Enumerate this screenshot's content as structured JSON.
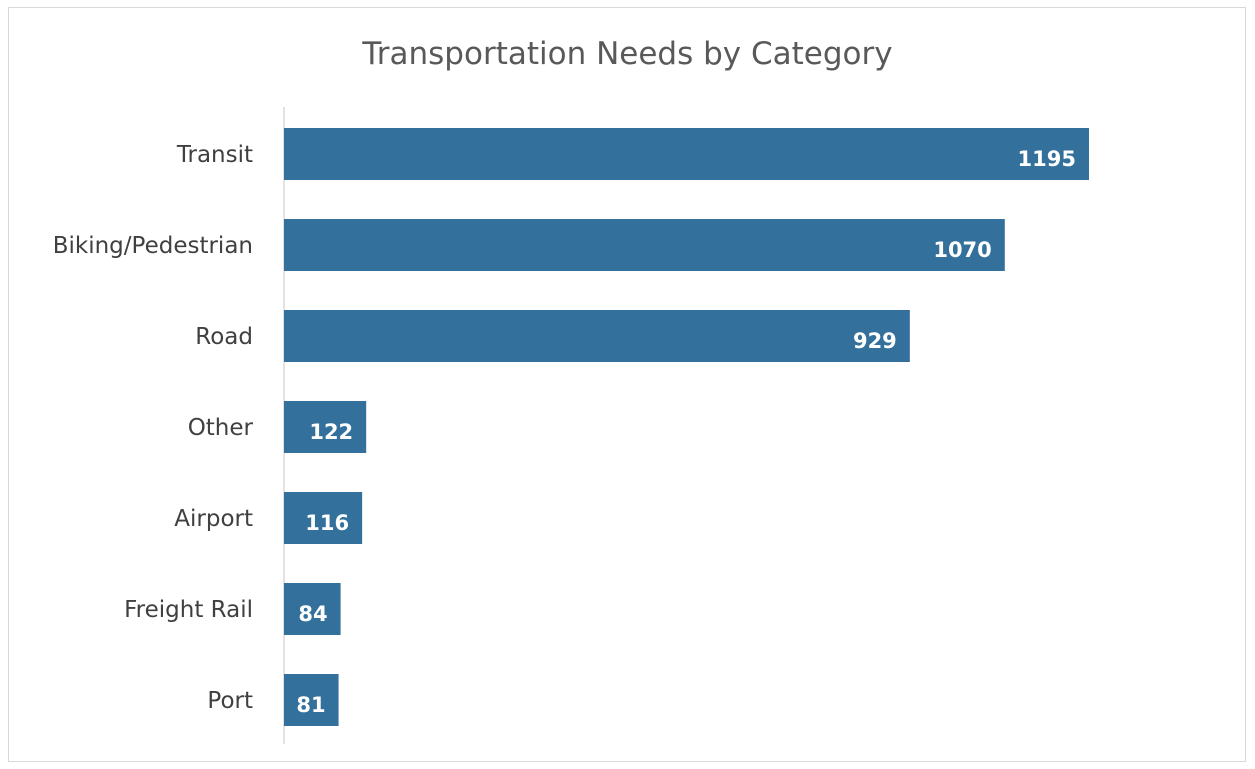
{
  "chart_data": {
    "type": "bar",
    "orientation": "horizontal",
    "title": "Transportation Needs by Category",
    "xlabel": "",
    "ylabel": "",
    "categories": [
      "Transit",
      "Biking/Pedestrian",
      "Road",
      "Other",
      "Airport",
      "Freight Rail",
      "Port"
    ],
    "values": [
      1195,
      1070,
      929,
      122,
      116,
      84,
      81
    ],
    "xlim": [
      0,
      1195
    ],
    "grid": false,
    "legend": "none",
    "data_labels": "inside-end",
    "bar_color": "#33709c"
  }
}
